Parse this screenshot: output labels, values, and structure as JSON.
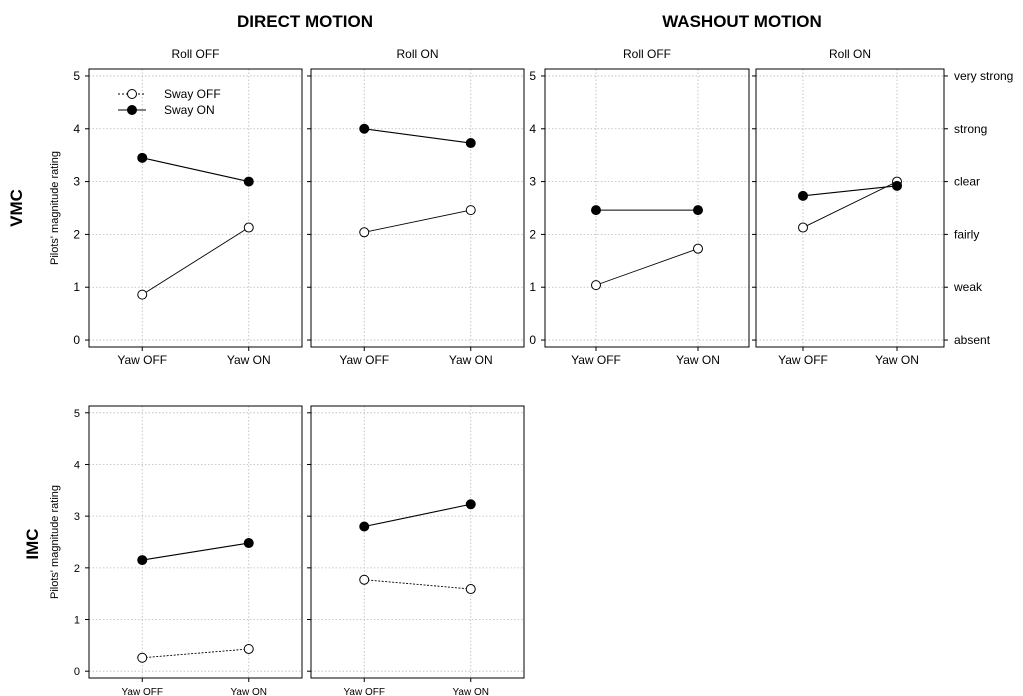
{
  "figure": {
    "group_titles": [
      "DIRECT MOTION",
      "WASHOUT MOTION"
    ],
    "row_labels": [
      "VMC",
      "IMC"
    ],
    "legend": {
      "sway_off": "Sway OFF",
      "sway_on": "Sway ON"
    },
    "right_scale_labels": [
      "absent",
      "weak",
      "fairly",
      "clear",
      "strong",
      "very strong"
    ]
  },
  "chart_data": [
    {
      "type": "line",
      "condition": "VMC",
      "group": "DIRECT MOTION",
      "title": "Roll OFF",
      "categories": [
        "Yaw OFF",
        "Yaw ON"
      ],
      "ylabel": "Pilots' magnitude rating",
      "ylim": [
        0,
        5
      ],
      "yticks": [
        "0",
        "1",
        "2",
        "3",
        "4",
        "5"
      ],
      "grid": true,
      "legend_position": "top-left",
      "series": [
        {
          "name": "Sway OFF",
          "values": [
            0.86,
            2.13
          ],
          "marker": "open-circle"
        },
        {
          "name": "Sway ON",
          "values": [
            3.45,
            3.0
          ],
          "marker": "filled-circle"
        }
      ]
    },
    {
      "type": "line",
      "condition": "VMC",
      "group": "DIRECT MOTION",
      "title": "Roll ON",
      "categories": [
        "Yaw OFF",
        "Yaw ON"
      ],
      "ylim": [
        0,
        5
      ],
      "grid": true,
      "series": [
        {
          "name": "Sway OFF",
          "values": [
            2.04,
            2.46
          ],
          "marker": "open-circle"
        },
        {
          "name": "Sway ON",
          "values": [
            4.0,
            3.73
          ],
          "marker": "filled-circle"
        }
      ]
    },
    {
      "type": "line",
      "condition": "VMC",
      "group": "WASHOUT MOTION",
      "title": "Roll OFF",
      "categories": [
        "Yaw OFF",
        "Yaw ON"
      ],
      "ylim": [
        0,
        5
      ],
      "yticks": [
        "0",
        "1",
        "2",
        "3",
        "4",
        "5"
      ],
      "grid": true,
      "series": [
        {
          "name": "Sway OFF",
          "values": [
            1.04,
            1.73
          ],
          "marker": "open-circle"
        },
        {
          "name": "Sway ON",
          "values": [
            2.46,
            2.46
          ],
          "marker": "filled-circle"
        }
      ]
    },
    {
      "type": "line",
      "condition": "VMC",
      "group": "WASHOUT MOTION",
      "title": "Roll ON",
      "categories": [
        "Yaw OFF",
        "Yaw ON"
      ],
      "ylim": [
        0,
        5
      ],
      "grid": true,
      "series": [
        {
          "name": "Sway OFF",
          "values": [
            2.13,
            3.0
          ],
          "marker": "open-circle"
        },
        {
          "name": "Sway ON",
          "values": [
            2.73,
            2.92
          ],
          "marker": "filled-circle"
        }
      ]
    },
    {
      "type": "line",
      "condition": "IMC",
      "group": "DIRECT MOTION",
      "categories": [
        "Yaw OFF",
        "Yaw ON"
      ],
      "ylabel": "Pilots' magnitude rating",
      "ylim": [
        0,
        5
      ],
      "yticks": [
        "0",
        "1",
        "2",
        "3",
        "4",
        "5"
      ],
      "grid": true,
      "series": [
        {
          "name": "Sway OFF",
          "values": [
            0.26,
            0.43
          ],
          "marker": "open-circle"
        },
        {
          "name": "Sway ON",
          "values": [
            2.15,
            2.48
          ],
          "marker": "filled-circle"
        }
      ]
    },
    {
      "type": "line",
      "condition": "IMC",
      "group": "DIRECT MOTION",
      "categories": [
        "Yaw OFF",
        "Yaw ON"
      ],
      "ylim": [
        0,
        5
      ],
      "grid": true,
      "series": [
        {
          "name": "Sway OFF",
          "values": [
            1.77,
            1.59
          ],
          "marker": "open-circle"
        },
        {
          "name": "Sway ON",
          "values": [
            2.8,
            3.23
          ],
          "marker": "filled-circle"
        }
      ]
    }
  ]
}
